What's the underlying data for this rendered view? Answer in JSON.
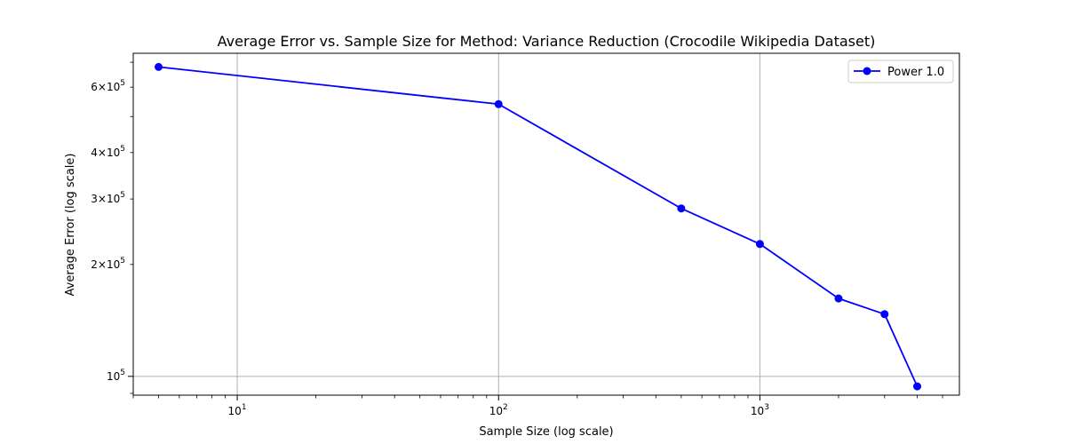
{
  "chart_data": {
    "type": "line",
    "title": "Average Error vs. Sample Size for Method: Variance Reduction (Crocodile Wikipedia Dataset)",
    "xlabel": "Sample Size (log scale)",
    "ylabel": "Average Error (log scale)",
    "x_scale": "log",
    "y_scale": "log",
    "xlim": [
      4,
      5800
    ],
    "ylim": [
      89000,
      740000
    ],
    "grid": true,
    "legend_position": "top-right",
    "x_major_ticks": [
      {
        "value": 10,
        "base": "10",
        "exp": "1"
      },
      {
        "value": 100,
        "base": "10",
        "exp": "2"
      },
      {
        "value": 1000,
        "base": "10",
        "exp": "3"
      }
    ],
    "y_ticks": [
      {
        "value": 100000,
        "prefix": "",
        "base": "10",
        "exp": "5"
      },
      {
        "value": 200000,
        "prefix": "2×",
        "base": "10",
        "exp": "5"
      },
      {
        "value": 300000,
        "prefix": "3×",
        "base": "10",
        "exp": "5"
      },
      {
        "value": 400000,
        "prefix": "4×",
        "base": "10",
        "exp": "5"
      },
      {
        "value": 600000,
        "prefix": "6×",
        "base": "10",
        "exp": "5"
      }
    ],
    "series": [
      {
        "name": "Power 1.0",
        "color": "#0000ff",
        "marker": "circle",
        "x": [
          5,
          100,
          500,
          1000,
          2000,
          3000,
          4000
        ],
        "y": [
          680000,
          540000,
          283000,
          227000,
          162000,
          147000,
          94000
        ]
      }
    ]
  }
}
